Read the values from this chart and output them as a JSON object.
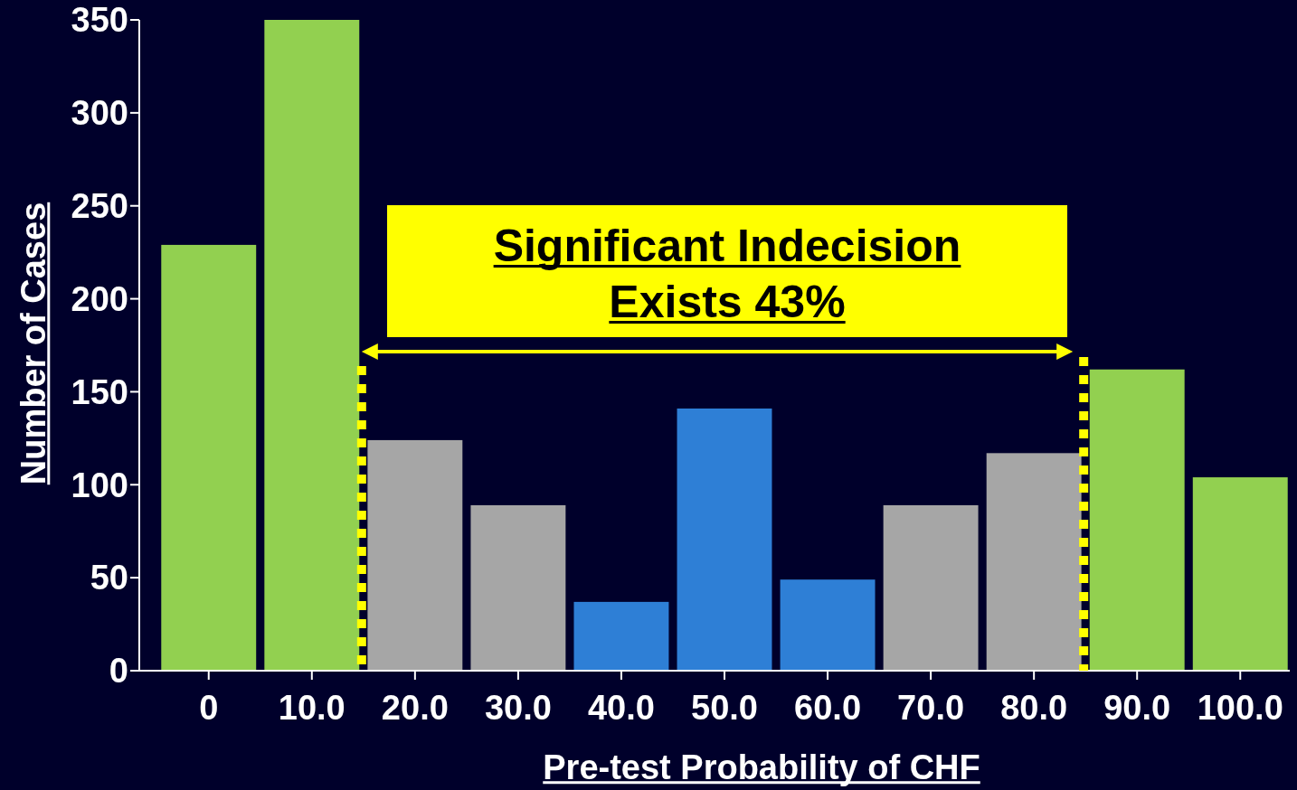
{
  "chart_data": {
    "type": "bar",
    "xlabel": "Pre-test Probability of CHF",
    "ylabel": "Number of Cases",
    "categories": [
      "0",
      "10.0",
      "20.0",
      "30.0",
      "40.0",
      "50.0",
      "60.0",
      "70.0",
      "80.0",
      "90.0",
      "100.0"
    ],
    "values": [
      229,
      350,
      124,
      89,
      37,
      141,
      49,
      89,
      117,
      162,
      104
    ],
    "colors": [
      "#92d050",
      "#92d050",
      "#a6a6a6",
      "#a6a6a6",
      "#2e7fd6",
      "#2e7fd6",
      "#2e7fd6",
      "#a6a6a6",
      "#a6a6a6",
      "#92d050",
      "#92d050"
    ],
    "ylim": [
      0,
      350
    ],
    "yticks": [
      0,
      50,
      100,
      150,
      200,
      250,
      300,
      350
    ],
    "grid": false,
    "annotations": [
      "Significant Indecision\nExists 43%"
    ]
  }
}
